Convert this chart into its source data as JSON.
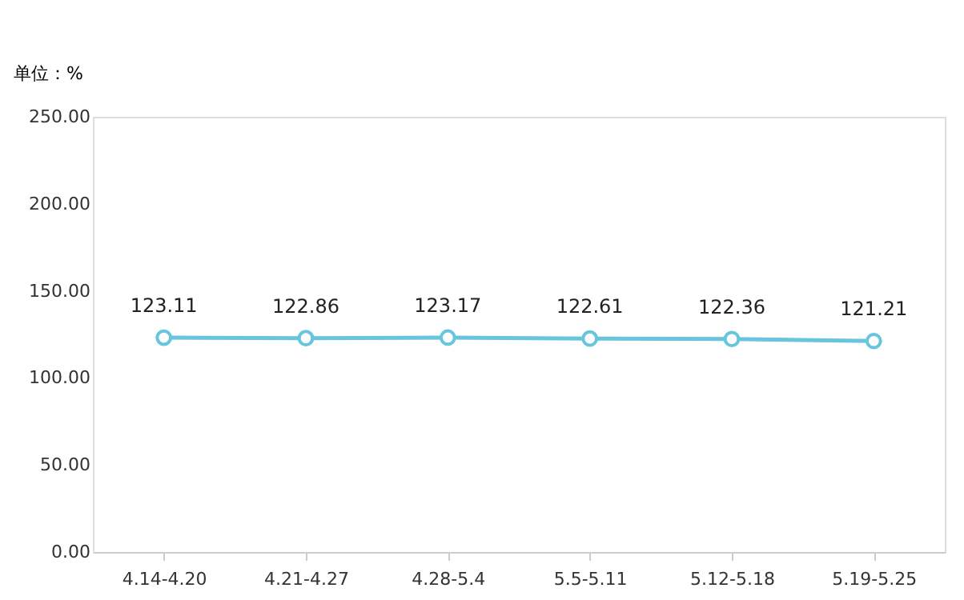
{
  "chart_data": {
    "type": "line",
    "ylabel": "单位：%",
    "categories": [
      "4.14-4.20",
      "4.21-4.27",
      "4.28-5.4",
      "5.5-5.11",
      "5.12-5.18",
      "5.19-5.25"
    ],
    "series": [
      {
        "color": "#67c5dc",
        "values": [
          123.11,
          122.86,
          123.17,
          122.61,
          122.36,
          121.21
        ]
      }
    ],
    "ylim": [
      0,
      250
    ],
    "yticks": [
      {
        "value": 0,
        "label": "0.00"
      },
      {
        "value": 50,
        "label": "50.00"
      },
      {
        "value": 100,
        "label": "100.00"
      },
      {
        "value": 150,
        "label": "150.00"
      },
      {
        "value": 200,
        "label": "200.00"
      },
      {
        "value": 250,
        "label": "250.00"
      }
    ],
    "data_labels": true,
    "grid": false,
    "marker": "circle",
    "line_style": "solid"
  }
}
